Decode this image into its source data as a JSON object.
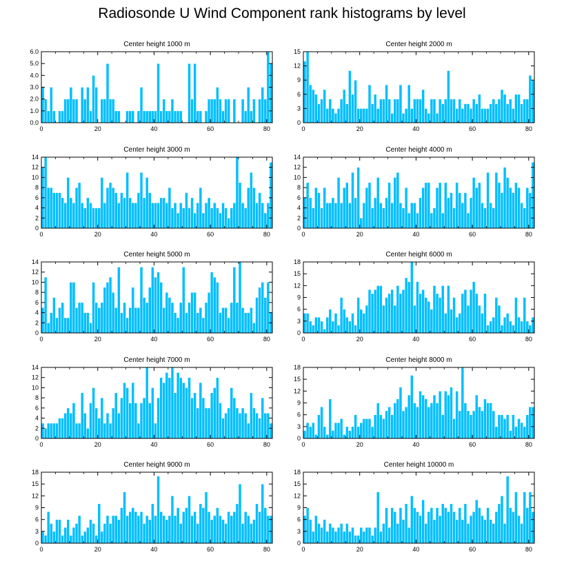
{
  "figure": {
    "title": "Radiosonde U Wind Component rank histograms by level"
  },
  "style": {
    "bar_color": "#00bfff",
    "bar_edge": "#ffffff",
    "axis_color": "#000000"
  },
  "chart_data": [
    {
      "type": "bar",
      "title": "Center height 1000 m",
      "ylim": [
        0,
        6
      ],
      "yticks": [
        0,
        1,
        2,
        3,
        4,
        5,
        6
      ],
      "ytick_labels": [
        "0.0",
        "1.0",
        "2.0",
        "3.0",
        "4.0",
        "5.0",
        "6.0"
      ],
      "xlim": [
        0,
        82
      ],
      "xticks": [
        0,
        20,
        40,
        60,
        80
      ],
      "xtick_labels": [
        "0",
        "20",
        "40",
        "60",
        "80"
      ],
      "values": [
        3,
        2,
        1,
        3,
        1,
        0,
        1,
        1,
        2,
        2,
        3,
        2,
        2,
        0,
        3,
        2,
        3,
        1,
        4,
        3,
        0,
        2,
        2,
        5,
        2,
        2,
        1,
        1,
        0,
        0,
        1,
        1,
        1,
        0,
        1,
        3,
        1,
        1,
        1,
        1,
        1,
        5,
        1,
        2,
        1,
        1,
        2,
        1,
        1,
        1,
        0,
        0,
        5,
        2,
        5,
        1,
        1,
        0,
        1,
        2,
        2,
        2,
        3,
        2,
        1,
        2,
        2,
        0,
        2,
        0,
        0,
        2,
        1,
        3,
        1,
        2,
        0,
        2,
        3,
        2,
        6,
        5
      ]
    },
    {
      "type": "bar",
      "title": "Center height 2000 m",
      "ylim": [
        0,
        15
      ],
      "yticks": [
        0,
        3,
        6,
        9,
        12,
        15
      ],
      "ytick_labels": [
        "0",
        "3",
        "6",
        "9",
        "12",
        "15"
      ],
      "xlim": [
        0,
        82
      ],
      "xticks": [
        0,
        20,
        40,
        60,
        80
      ],
      "xtick_labels": [
        "0",
        "20",
        "40",
        "60",
        "80"
      ],
      "values": [
        13,
        15,
        8,
        7,
        6,
        4,
        5,
        7,
        3,
        5,
        3,
        2,
        3,
        5,
        7,
        4,
        11,
        6,
        9,
        3,
        3,
        3,
        3,
        8,
        4,
        6,
        3,
        5,
        5,
        8,
        5,
        2,
        5,
        5,
        8,
        2,
        3,
        8,
        3,
        5,
        5,
        5,
        7,
        3,
        2,
        5,
        5,
        2,
        5,
        4,
        5,
        11,
        5,
        5,
        3,
        5,
        3,
        4,
        4,
        3,
        5,
        4,
        6,
        3,
        3,
        3,
        4,
        5,
        4,
        5,
        7,
        6,
        4,
        5,
        3,
        6,
        6,
        4,
        5,
        5,
        10,
        9
      ]
    },
    {
      "type": "bar",
      "title": "Center height 3000 m",
      "ylim": [
        0,
        14
      ],
      "yticks": [
        0,
        2,
        4,
        6,
        8,
        10,
        12,
        14
      ],
      "ytick_labels": [
        "0",
        "2",
        "4",
        "6",
        "8",
        "10",
        "12",
        "14"
      ],
      "xlim": [
        0,
        82
      ],
      "xticks": [
        0,
        20,
        40,
        60,
        80
      ],
      "xtick_labels": [
        "0",
        "20",
        "40",
        "60",
        "80"
      ],
      "values": [
        12,
        14,
        8,
        8,
        7,
        7,
        7,
        6,
        5,
        10,
        6,
        5,
        8,
        9,
        5,
        4,
        6,
        5,
        4,
        4,
        4,
        10,
        5,
        8,
        9,
        8,
        7,
        5,
        7,
        6,
        11,
        6,
        5,
        5,
        7,
        11,
        6,
        10,
        7,
        5,
        5,
        5,
        6,
        6,
        5,
        8,
        4,
        5,
        3,
        5,
        4,
        7,
        4,
        6,
        3,
        5,
        8,
        3,
        5,
        6,
        4,
        5,
        4,
        3,
        5,
        4,
        2,
        4,
        5,
        14,
        9,
        5,
        4,
        8,
        11,
        8,
        5,
        7,
        5,
        3,
        5,
        13
      ]
    },
    {
      "type": "bar",
      "title": "Center height 4000 m",
      "ylim": [
        0,
        14
      ],
      "yticks": [
        0,
        2,
        4,
        6,
        8,
        10,
        12,
        14
      ],
      "ytick_labels": [
        "0",
        "2",
        "4",
        "6",
        "8",
        "10",
        "12",
        "14"
      ],
      "xlim": [
        0,
        82
      ],
      "xticks": [
        0,
        20,
        40,
        60,
        80
      ],
      "xtick_labels": [
        "0",
        "20",
        "40",
        "60",
        "80"
      ],
      "values": [
        6,
        9,
        6,
        4,
        8,
        7,
        4,
        8,
        5,
        5,
        6,
        5,
        10,
        5,
        8,
        9,
        5,
        11,
        6,
        12,
        2,
        5,
        8,
        9,
        4,
        6,
        10,
        5,
        4,
        6,
        9,
        5,
        10,
        11,
        5,
        4,
        8,
        3,
        5,
        5,
        3,
        6,
        8,
        9,
        9,
        3,
        4,
        8,
        9,
        3,
        9,
        6,
        7,
        4,
        9,
        7,
        5,
        7,
        3,
        6,
        10,
        8,
        9,
        5,
        4,
        11,
        5,
        4,
        11,
        9,
        7,
        12,
        10,
        8,
        7,
        9,
        8,
        5,
        4,
        8,
        7,
        13
      ]
    },
    {
      "type": "bar",
      "title": "Center height 5000 m",
      "ylim": [
        0,
        14
      ],
      "yticks": [
        0,
        2,
        4,
        6,
        8,
        10,
        12,
        14
      ],
      "ytick_labels": [
        "0",
        "2",
        "4",
        "6",
        "8",
        "10",
        "12",
        "14"
      ],
      "xlim": [
        0,
        82
      ],
      "xticks": [
        0,
        20,
        40,
        60,
        80
      ],
      "xtick_labels": [
        "0",
        "20",
        "40",
        "60",
        "80"
      ],
      "values": [
        5,
        11,
        2,
        4,
        7,
        3,
        5,
        6,
        3,
        3,
        10,
        10,
        5,
        6,
        6,
        4,
        4,
        2,
        10,
        6,
        5,
        6,
        9,
        10,
        11,
        8,
        5,
        13,
        4,
        6,
        3,
        5,
        9,
        5,
        5,
        13,
        7,
        6,
        9,
        13,
        11,
        12,
        10,
        5,
        8,
        7,
        6,
        4,
        3,
        6,
        13,
        4,
        6,
        8,
        8,
        4,
        5,
        3,
        6,
        8,
        12,
        11,
        10,
        4,
        5,
        5,
        3,
        6,
        13,
        6,
        14,
        5,
        4,
        4,
        5,
        2,
        7,
        9,
        10,
        7,
        10,
        4
      ]
    },
    {
      "type": "bar",
      "title": "Center height 6000 m",
      "ylim": [
        0,
        18
      ],
      "yticks": [
        0,
        3,
        6,
        9,
        12,
        15,
        18
      ],
      "ytick_labels": [
        "0",
        "3",
        "6",
        "9",
        "12",
        "15",
        "18"
      ],
      "xlim": [
        0,
        82
      ],
      "xticks": [
        0,
        20,
        40,
        60,
        80
      ],
      "xtick_labels": [
        "0",
        "20",
        "40",
        "60",
        "80"
      ],
      "values": [
        5,
        5,
        3,
        2,
        4,
        4,
        3,
        1,
        4,
        6,
        3,
        5,
        2,
        9,
        6,
        4,
        3,
        5,
        2,
        9,
        6,
        5,
        7,
        11,
        10,
        11,
        12,
        12,
        7,
        9,
        10,
        11,
        7,
        12,
        10,
        11,
        14,
        13,
        18,
        7,
        13,
        10,
        11,
        9,
        8,
        6,
        12,
        10,
        9,
        12,
        5,
        12,
        6,
        9,
        4,
        5,
        10,
        11,
        7,
        11,
        13,
        10,
        7,
        5,
        10,
        2,
        3,
        4,
        9,
        7,
        2,
        4,
        5,
        3,
        2,
        9,
        4,
        3,
        9,
        3,
        2,
        4
      ]
    },
    {
      "type": "bar",
      "title": "Center height 7000 m",
      "ylim": [
        0,
        14
      ],
      "yticks": [
        0,
        2,
        4,
        6,
        8,
        10,
        12,
        14
      ],
      "ytick_labels": [
        "0",
        "2",
        "4",
        "6",
        "8",
        "10",
        "12",
        "14"
      ],
      "xlim": [
        0,
        82
      ],
      "xticks": [
        0,
        20,
        40,
        60,
        80
      ],
      "xtick_labels": [
        "0",
        "20",
        "40",
        "60",
        "80"
      ],
      "values": [
        3,
        2,
        3,
        3,
        3,
        3,
        4,
        4,
        5,
        6,
        5,
        7,
        3,
        3,
        9,
        5,
        2,
        7,
        10,
        6,
        4,
        8,
        3,
        5,
        3,
        6,
        9,
        5,
        8,
        11,
        10,
        7,
        11,
        7,
        3,
        7,
        8,
        14,
        7,
        10,
        3,
        8,
        12,
        11,
        13,
        12,
        14,
        9,
        13,
        12,
        11,
        10,
        12,
        8,
        9,
        6,
        11,
        8,
        6,
        6,
        9,
        10,
        12,
        7,
        4,
        5,
        6,
        10,
        8,
        6,
        5,
        6,
        5,
        3,
        9,
        6,
        5,
        4,
        8,
        5,
        5,
        3
      ]
    },
    {
      "type": "bar",
      "title": "Center height 8000 m",
      "ylim": [
        0,
        18
      ],
      "yticks": [
        0,
        3,
        6,
        9,
        12,
        15,
        18
      ],
      "ytick_labels": [
        "0",
        "3",
        "6",
        "9",
        "12",
        "15",
        "18"
      ],
      "xlim": [
        0,
        82
      ],
      "xticks": [
        0,
        20,
        40,
        60,
        80
      ],
      "xtick_labels": [
        "0",
        "20",
        "40",
        "60",
        "80"
      ],
      "values": [
        2,
        4,
        3,
        4,
        1,
        6,
        8,
        3,
        1,
        10,
        2,
        4,
        4,
        5,
        1,
        3,
        2,
        3,
        6,
        3,
        4,
        5,
        5,
        5,
        3,
        6,
        9,
        6,
        5,
        7,
        8,
        6,
        9,
        10,
        13,
        7,
        8,
        11,
        16,
        9,
        8,
        12,
        11,
        10,
        8,
        9,
        11,
        9,
        12,
        6,
        12,
        11,
        13,
        5,
        12,
        7,
        18,
        9,
        7,
        6,
        7,
        11,
        8,
        7,
        10,
        9,
        9,
        7,
        3,
        6,
        6,
        5,
        6,
        2,
        6,
        3,
        5,
        4,
        3,
        6,
        8,
        8
      ]
    },
    {
      "type": "bar",
      "title": "Center height 9000 m",
      "ylim": [
        0,
        18
      ],
      "yticks": [
        0,
        3,
        6,
        9,
        12,
        15,
        18
      ],
      "ytick_labels": [
        "0",
        "3",
        "6",
        "9",
        "12",
        "15",
        "18"
      ],
      "xlim": [
        0,
        82
      ],
      "xticks": [
        0,
        20,
        40,
        60,
        80
      ],
      "xtick_labels": [
        "0",
        "20",
        "40",
        "60",
        "80"
      ],
      "values": [
        3,
        2,
        8,
        5,
        3,
        6,
        6,
        2,
        4,
        6,
        2,
        4,
        5,
        7,
        2,
        3,
        4,
        6,
        5,
        2,
        10,
        3,
        5,
        7,
        5,
        7,
        7,
        6,
        9,
        13,
        7,
        8,
        9,
        8,
        7,
        8,
        5,
        7,
        6,
        10,
        7,
        17,
        8,
        7,
        6,
        7,
        12,
        7,
        9,
        5,
        8,
        9,
        12,
        7,
        8,
        5,
        10,
        9,
        13,
        8,
        6,
        7,
        9,
        7,
        6,
        5,
        8,
        7,
        8,
        10,
        15,
        5,
        8,
        7,
        5,
        6,
        10,
        8,
        15,
        9,
        7,
        7
      ]
    },
    {
      "type": "bar",
      "title": "Center height 10000 m",
      "ylim": [
        0,
        18
      ],
      "yticks": [
        0,
        3,
        6,
        9,
        12,
        15,
        18
      ],
      "ytick_labels": [
        "0",
        "3",
        "6",
        "9",
        "12",
        "15",
        "18"
      ],
      "xlim": [
        0,
        82
      ],
      "xticks": [
        0,
        20,
        40,
        60,
        80
      ],
      "xtick_labels": [
        "0",
        "20",
        "40",
        "60",
        "80"
      ],
      "values": [
        7,
        9,
        6,
        3,
        7,
        5,
        4,
        6,
        3,
        5,
        4,
        3,
        4,
        5,
        3,
        5,
        3,
        4,
        2,
        2,
        4,
        3,
        4,
        4,
        2,
        4,
        13,
        3,
        5,
        9,
        4,
        9,
        8,
        5,
        9,
        6,
        10,
        4,
        12,
        9,
        8,
        7,
        11,
        5,
        8,
        9,
        6,
        9,
        7,
        10,
        9,
        8,
        10,
        8,
        6,
        9,
        6,
        10,
        5,
        7,
        8,
        11,
        9,
        7,
        6,
        9,
        6,
        5,
        8,
        10,
        12,
        5,
        17,
        9,
        8,
        13,
        7,
        5,
        13,
        9,
        13,
        8
      ]
    }
  ]
}
